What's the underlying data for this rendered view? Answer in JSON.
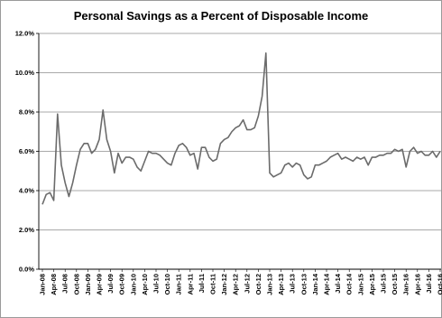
{
  "chart_data": {
    "type": "line",
    "title": "Personal Savings as a Percent of Disposable Income",
    "xlabel": "",
    "ylabel": "",
    "ylim": [
      0,
      12
    ],
    "yticks": [
      "0.0%",
      "2.0%",
      "4.0%",
      "6.0%",
      "8.0%",
      "10.0%",
      "12.0%"
    ],
    "grid": "horizontal",
    "legend": "none",
    "line_color": "#6b6b6b",
    "x_tick_labels": [
      "Jan-08",
      "Apr-08",
      "Jul-08",
      "Oct-08",
      "Jan-09",
      "Apr-09",
      "Jul-09",
      "Oct-09",
      "Jan-10",
      "Apr-10",
      "Jul-10",
      "Oct-10",
      "Jan-11",
      "Apr-11",
      "Jul-11",
      "Oct-11",
      "Jan-12",
      "Apr-12",
      "Jul-12",
      "Oct-12",
      "Jan-13",
      "Apr-13",
      "Jul-13",
      "Oct-13",
      "Jan-14",
      "Apr-14",
      "Jul-14",
      "Oct-14",
      "Jan-15",
      "Apr-15",
      "Jul-15",
      "Oct-15",
      "Jan-16",
      "Apr-16",
      "Jul-16",
      "Oct-16"
    ],
    "series": [
      {
        "values": [
          3.3,
          3.8,
          3.9,
          3.5,
          7.9,
          5.3,
          4.4,
          3.7,
          4.4,
          5.3,
          6.1,
          6.4,
          6.4,
          5.9,
          6.1,
          6.6,
          8.1,
          6.6,
          6.0,
          4.9,
          5.9,
          5.4,
          5.7,
          5.7,
          5.6,
          5.2,
          5.0,
          5.5,
          6.0,
          5.9,
          5.9,
          5.8,
          5.6,
          5.4,
          5.3,
          5.9,
          6.3,
          6.4,
          6.2,
          5.8,
          5.9,
          5.1,
          6.2,
          6.2,
          5.7,
          5.5,
          5.6,
          6.4,
          6.6,
          6.7,
          7.0,
          7.2,
          7.3,
          7.6,
          7.1,
          7.1,
          7.2,
          7.8,
          8.8,
          11.0,
          4.9,
          4.7,
          4.8,
          4.9,
          5.3,
          5.4,
          5.2,
          5.4,
          5.3,
          4.8,
          4.6,
          4.7,
          5.3,
          5.3,
          5.4,
          5.5,
          5.7,
          5.8,
          5.9,
          5.6,
          5.7,
          5.6,
          5.5,
          5.7,
          5.6,
          5.7,
          5.3,
          5.7,
          5.7,
          5.8,
          5.8,
          5.9,
          5.9,
          6.1,
          6.0,
          6.1,
          5.2,
          6.0,
          6.2,
          5.9,
          6.0,
          5.8,
          5.8,
          6.0,
          5.7,
          6.0
        ]
      }
    ]
  }
}
